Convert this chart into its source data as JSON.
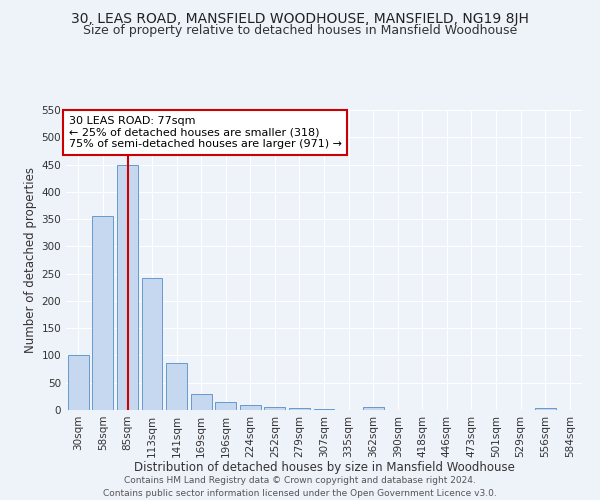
{
  "title": "30, LEAS ROAD, MANSFIELD WOODHOUSE, MANSFIELD, NG19 8JH",
  "subtitle": "Size of property relative to detached houses in Mansfield Woodhouse",
  "xlabel": "Distribution of detached houses by size in Mansfield Woodhouse",
  "ylabel": "Number of detached properties",
  "bin_labels": [
    "30sqm",
    "58sqm",
    "85sqm",
    "113sqm",
    "141sqm",
    "169sqm",
    "196sqm",
    "224sqm",
    "252sqm",
    "279sqm",
    "307sqm",
    "335sqm",
    "362sqm",
    "390sqm",
    "418sqm",
    "446sqm",
    "473sqm",
    "501sqm",
    "529sqm",
    "556sqm",
    "584sqm"
  ],
  "bar_values": [
    100,
    355,
    450,
    242,
    87,
    30,
    15,
    9,
    5,
    3,
    2,
    0,
    6,
    0,
    0,
    0,
    0,
    0,
    0,
    4,
    0
  ],
  "bar_color": "#c5d8f0",
  "bar_edge_color": "#6699cc",
  "property_line_bin": 2.03,
  "vline_color": "#cc0000",
  "annotation_text": "30 LEAS ROAD: 77sqm\n← 25% of detached houses are smaller (318)\n75% of semi-detached houses are larger (971) →",
  "annotation_box_color": "#ffffff",
  "annotation_box_edge": "#cc0000",
  "ylim": [
    0,
    550
  ],
  "yticks": [
    0,
    50,
    100,
    150,
    200,
    250,
    300,
    350,
    400,
    450,
    500,
    550
  ],
  "footer": "Contains HM Land Registry data © Crown copyright and database right 2024.\nContains public sector information licensed under the Open Government Licence v3.0.",
  "bg_color": "#eef2f9",
  "grid_color": "#ffffff",
  "title_fontsize": 10,
  "subtitle_fontsize": 9,
  "axis_label_fontsize": 8.5,
  "tick_fontsize": 7.5,
  "footer_fontsize": 6.5
}
